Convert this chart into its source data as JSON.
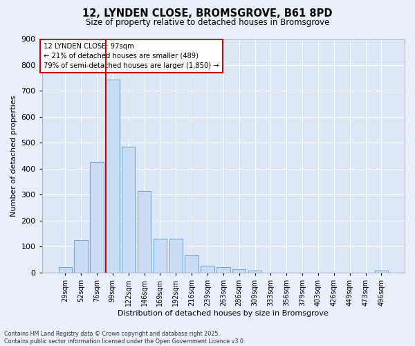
{
  "title_line1": "12, LYNDEN CLOSE, BROMSGROVE, B61 8PD",
  "title_line2": "Size of property relative to detached houses in Bromsgrove",
  "xlabel": "Distribution of detached houses by size in Bromsgrove",
  "ylabel": "Number of detached properties",
  "bar_labels": [
    "29sqm",
    "52sqm",
    "76sqm",
    "99sqm",
    "122sqm",
    "146sqm",
    "169sqm",
    "192sqm",
    "216sqm",
    "239sqm",
    "263sqm",
    "286sqm",
    "309sqm",
    "333sqm",
    "356sqm",
    "379sqm",
    "403sqm",
    "426sqm",
    "449sqm",
    "473sqm",
    "496sqm"
  ],
  "bar_values": [
    20,
    125,
    425,
    743,
    485,
    315,
    130,
    130,
    65,
    25,
    20,
    12,
    8,
    0,
    0,
    0,
    0,
    0,
    0,
    0,
    8
  ],
  "bar_color": "#c9ddf5",
  "bar_edge_color": "#6b9fd4",
  "vline_color": "#cc0000",
  "ylim": [
    0,
    900
  ],
  "yticks": [
    0,
    100,
    200,
    300,
    400,
    500,
    600,
    700,
    800,
    900
  ],
  "annotation_title": "12 LYNDEN CLOSE: 97sqm",
  "annotation_line1": "← 21% of detached houses are smaller (489)",
  "annotation_line2": "79% of semi-detached houses are larger (1,850) →",
  "annotation_box_color": "#cc0000",
  "footer_line1": "Contains HM Land Registry data © Crown copyright and database right 2025.",
  "footer_line2": "Contains public sector information licensed under the Open Government Licence v3.0.",
  "bg_color": "#e8f0fa",
  "plot_bg_color": "#dce8f7",
  "grid_color": "#ffffff"
}
